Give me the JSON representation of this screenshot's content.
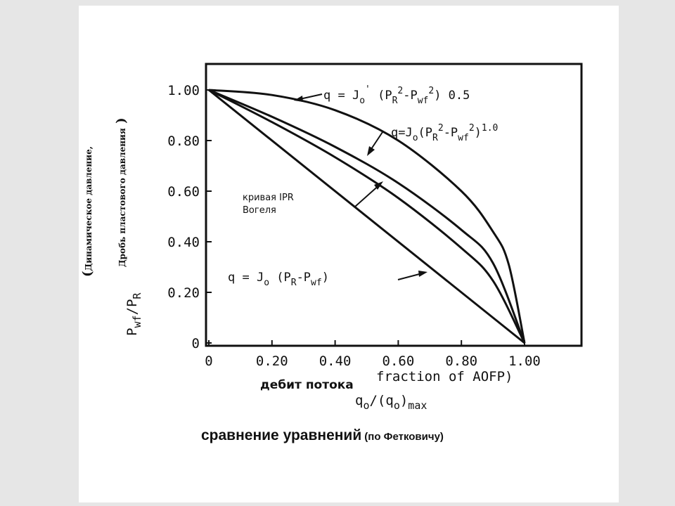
{
  "caption": {
    "main": "сравнение уравнений",
    "note": "(по Фетковичу)"
  },
  "chart_data": {
    "type": "line",
    "title": "",
    "xlabel_ru": "дебит потока",
    "xlabel_en": "fraction of AOFP)",
    "xlabel_formula": "q_o/(q_o)_max",
    "ylabel_formula": "P_wf/P_R",
    "ylabel_ru_1": "Динамическое давление,",
    "ylabel_ru_2": "Дробь пластового давления",
    "xlim": [
      0,
      1.0
    ],
    "ylim": [
      0,
      1.0
    ],
    "x_ticks": [
      {
        "value": 0,
        "label": "0"
      },
      {
        "value": 0.2,
        "label": "0.20"
      },
      {
        "value": 0.4,
        "label": "0.40"
      },
      {
        "value": 0.6,
        "label": "0.60"
      },
      {
        "value": 0.8,
        "label": "0.80"
      },
      {
        "value": 1.0,
        "label": "1.00"
      }
    ],
    "y_ticks": [
      {
        "value": 0,
        "label": "0"
      },
      {
        "value": 0.2,
        "label": "0.20"
      },
      {
        "value": 0.4,
        "label": "0.40"
      },
      {
        "value": 0.6,
        "label": "0.60"
      },
      {
        "value": 0.8,
        "label": "0.80"
      },
      {
        "value": 1.0,
        "label": "1.00"
      }
    ],
    "grid": false,
    "series": [
      {
        "name": "q = Jo' (PR^2 - Pwf^2) 0.5",
        "label_parts": [
          "q = J",
          "o",
          "'",
          " (P",
          "R",
          "2",
          "-P",
          "wf",
          "2",
          ") 0.5"
        ],
        "x": [
          0,
          0.2,
          0.4,
          0.6,
          0.8,
          0.9,
          0.95,
          1.0
        ],
        "y": [
          1.0,
          0.98,
          0.92,
          0.8,
          0.6,
          0.44,
          0.31,
          0
        ]
      },
      {
        "name": "q = Jo (PR^2 - Pwf^2) 1.0",
        "label_parts": [
          "q=J",
          "o",
          "(P",
          "R",
          "2",
          "-P",
          "wf",
          "2",
          ")",
          "1.0"
        ],
        "x": [
          0,
          0.2,
          0.4,
          0.6,
          0.8,
          0.9,
          1.0
        ],
        "y": [
          1.0,
          0.894,
          0.775,
          0.632,
          0.447,
          0.316,
          0
        ]
      },
      {
        "name": "кривая IPR Вогеля",
        "label_parts": [
          "кривая IPR",
          "Вогеля"
        ],
        "x": [
          0,
          0.2,
          0.4,
          0.6,
          0.8,
          0.9,
          1.0
        ],
        "y": [
          1.0,
          0.873,
          0.734,
          0.573,
          0.375,
          0.246,
          0
        ]
      },
      {
        "name": "q = Jo (PR - Pwf)",
        "label_parts": [
          "q = J",
          "o",
          " (P",
          "R",
          "-P",
          "wf",
          ")"
        ],
        "x": [
          0,
          1.0
        ],
        "y": [
          1.0,
          0
        ]
      }
    ]
  }
}
